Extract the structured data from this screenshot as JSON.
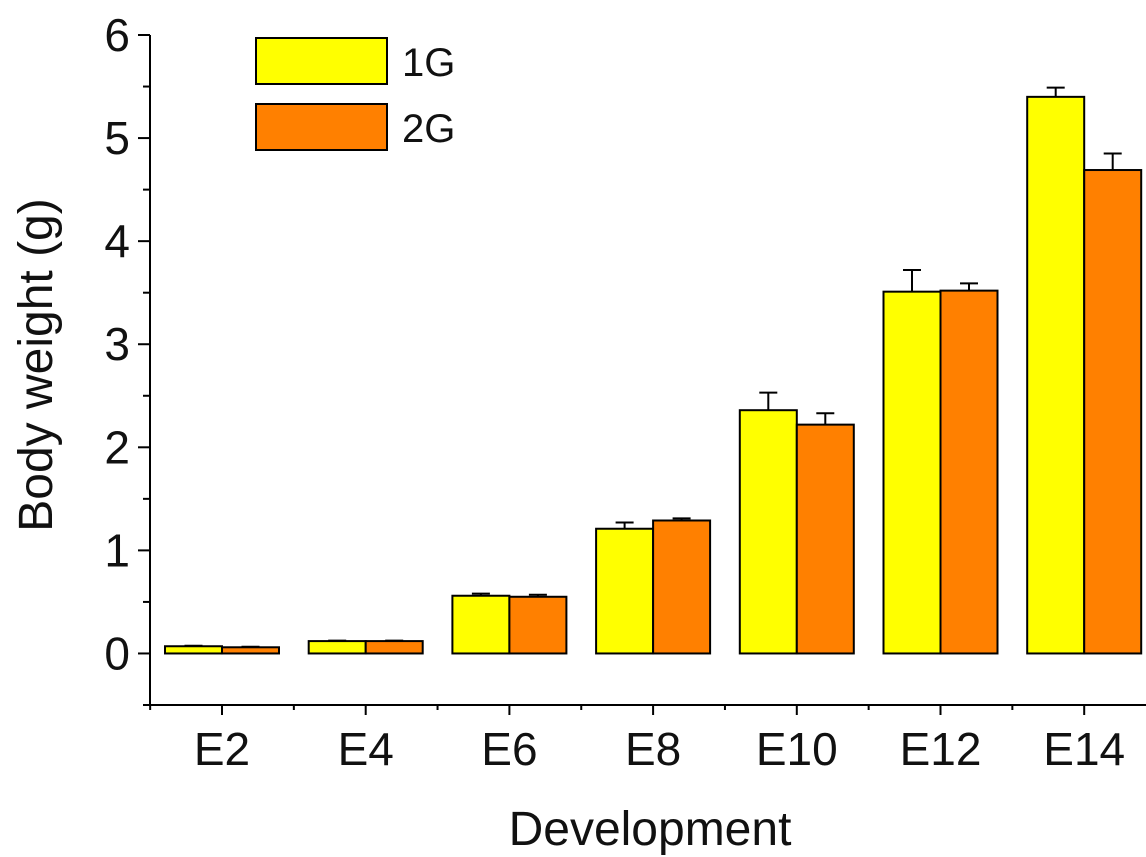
{
  "chart_data": {
    "type": "bar",
    "title": "",
    "xlabel": "Development",
    "ylabel": "Body weight (g)",
    "categories": [
      "E2",
      "E4",
      "E6",
      "E8",
      "E10",
      "E12",
      "E14"
    ],
    "ylim": [
      -0.5,
      6
    ],
    "yticks": [
      0,
      1,
      2,
      3,
      4,
      5,
      6
    ],
    "legend_position": "top-left",
    "series": [
      {
        "name": "1G",
        "color": "#ffff00",
        "values": [
          0.07,
          0.12,
          0.56,
          1.21,
          2.36,
          3.51,
          5.4
        ],
        "errors": [
          0.005,
          0.005,
          0.02,
          0.06,
          0.17,
          0.21,
          0.09
        ]
      },
      {
        "name": "2G",
        "color": "#ff8000",
        "values": [
          0.06,
          0.12,
          0.55,
          1.29,
          2.22,
          3.52,
          4.69
        ],
        "errors": [
          0.005,
          0.005,
          0.02,
          0.02,
          0.11,
          0.07,
          0.16
        ]
      }
    ]
  }
}
